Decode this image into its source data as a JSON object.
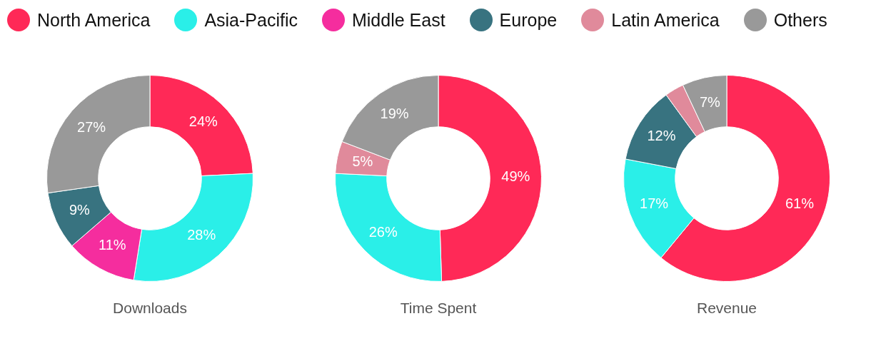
{
  "chart_data": [
    {
      "type": "donut",
      "title": "Downloads",
      "legend": "top",
      "categories": [
        "North America",
        "Asia-Pacific",
        "Middle East",
        "Europe",
        "Latin America",
        "Others"
      ],
      "colors": [
        "#ff2957",
        "#2aefe8",
        "#f52d9e",
        "#387380",
        "#e08a9b",
        "#999999"
      ],
      "values": [
        24,
        28,
        11,
        9,
        null,
        27
      ],
      "value_labels": [
        "24%",
        "28%",
        "11%",
        "9%",
        null,
        "27%"
      ]
    },
    {
      "type": "donut",
      "title": "Time Spent",
      "categories": [
        null,
        null,
        null,
        null,
        null,
        null
      ],
      "colors": [
        "#ff2957",
        "#2aefe8",
        "#f52d9e",
        "#387380",
        "#e08a9b",
        "#999999"
      ],
      "values": [
        49,
        26,
        null,
        null,
        5,
        19
      ],
      "value_labels": [
        "49%",
        "26%",
        null,
        null,
        "5%",
        "19%"
      ]
    },
    {
      "type": "donut",
      "title": "Revenue",
      "categories": [
        null,
        null,
        null,
        null,
        null,
        null
      ],
      "colors": [
        "#ff2957",
        "#2aefe8",
        "#f52d9e",
        "#387380",
        "#e08a9b",
        "#999999"
      ],
      "values": [
        61,
        17,
        null,
        12,
        3,
        7
      ],
      "value_labels": [
        "61%",
        "17%",
        null,
        "12%",
        null,
        "7%"
      ]
    }
  ]
}
